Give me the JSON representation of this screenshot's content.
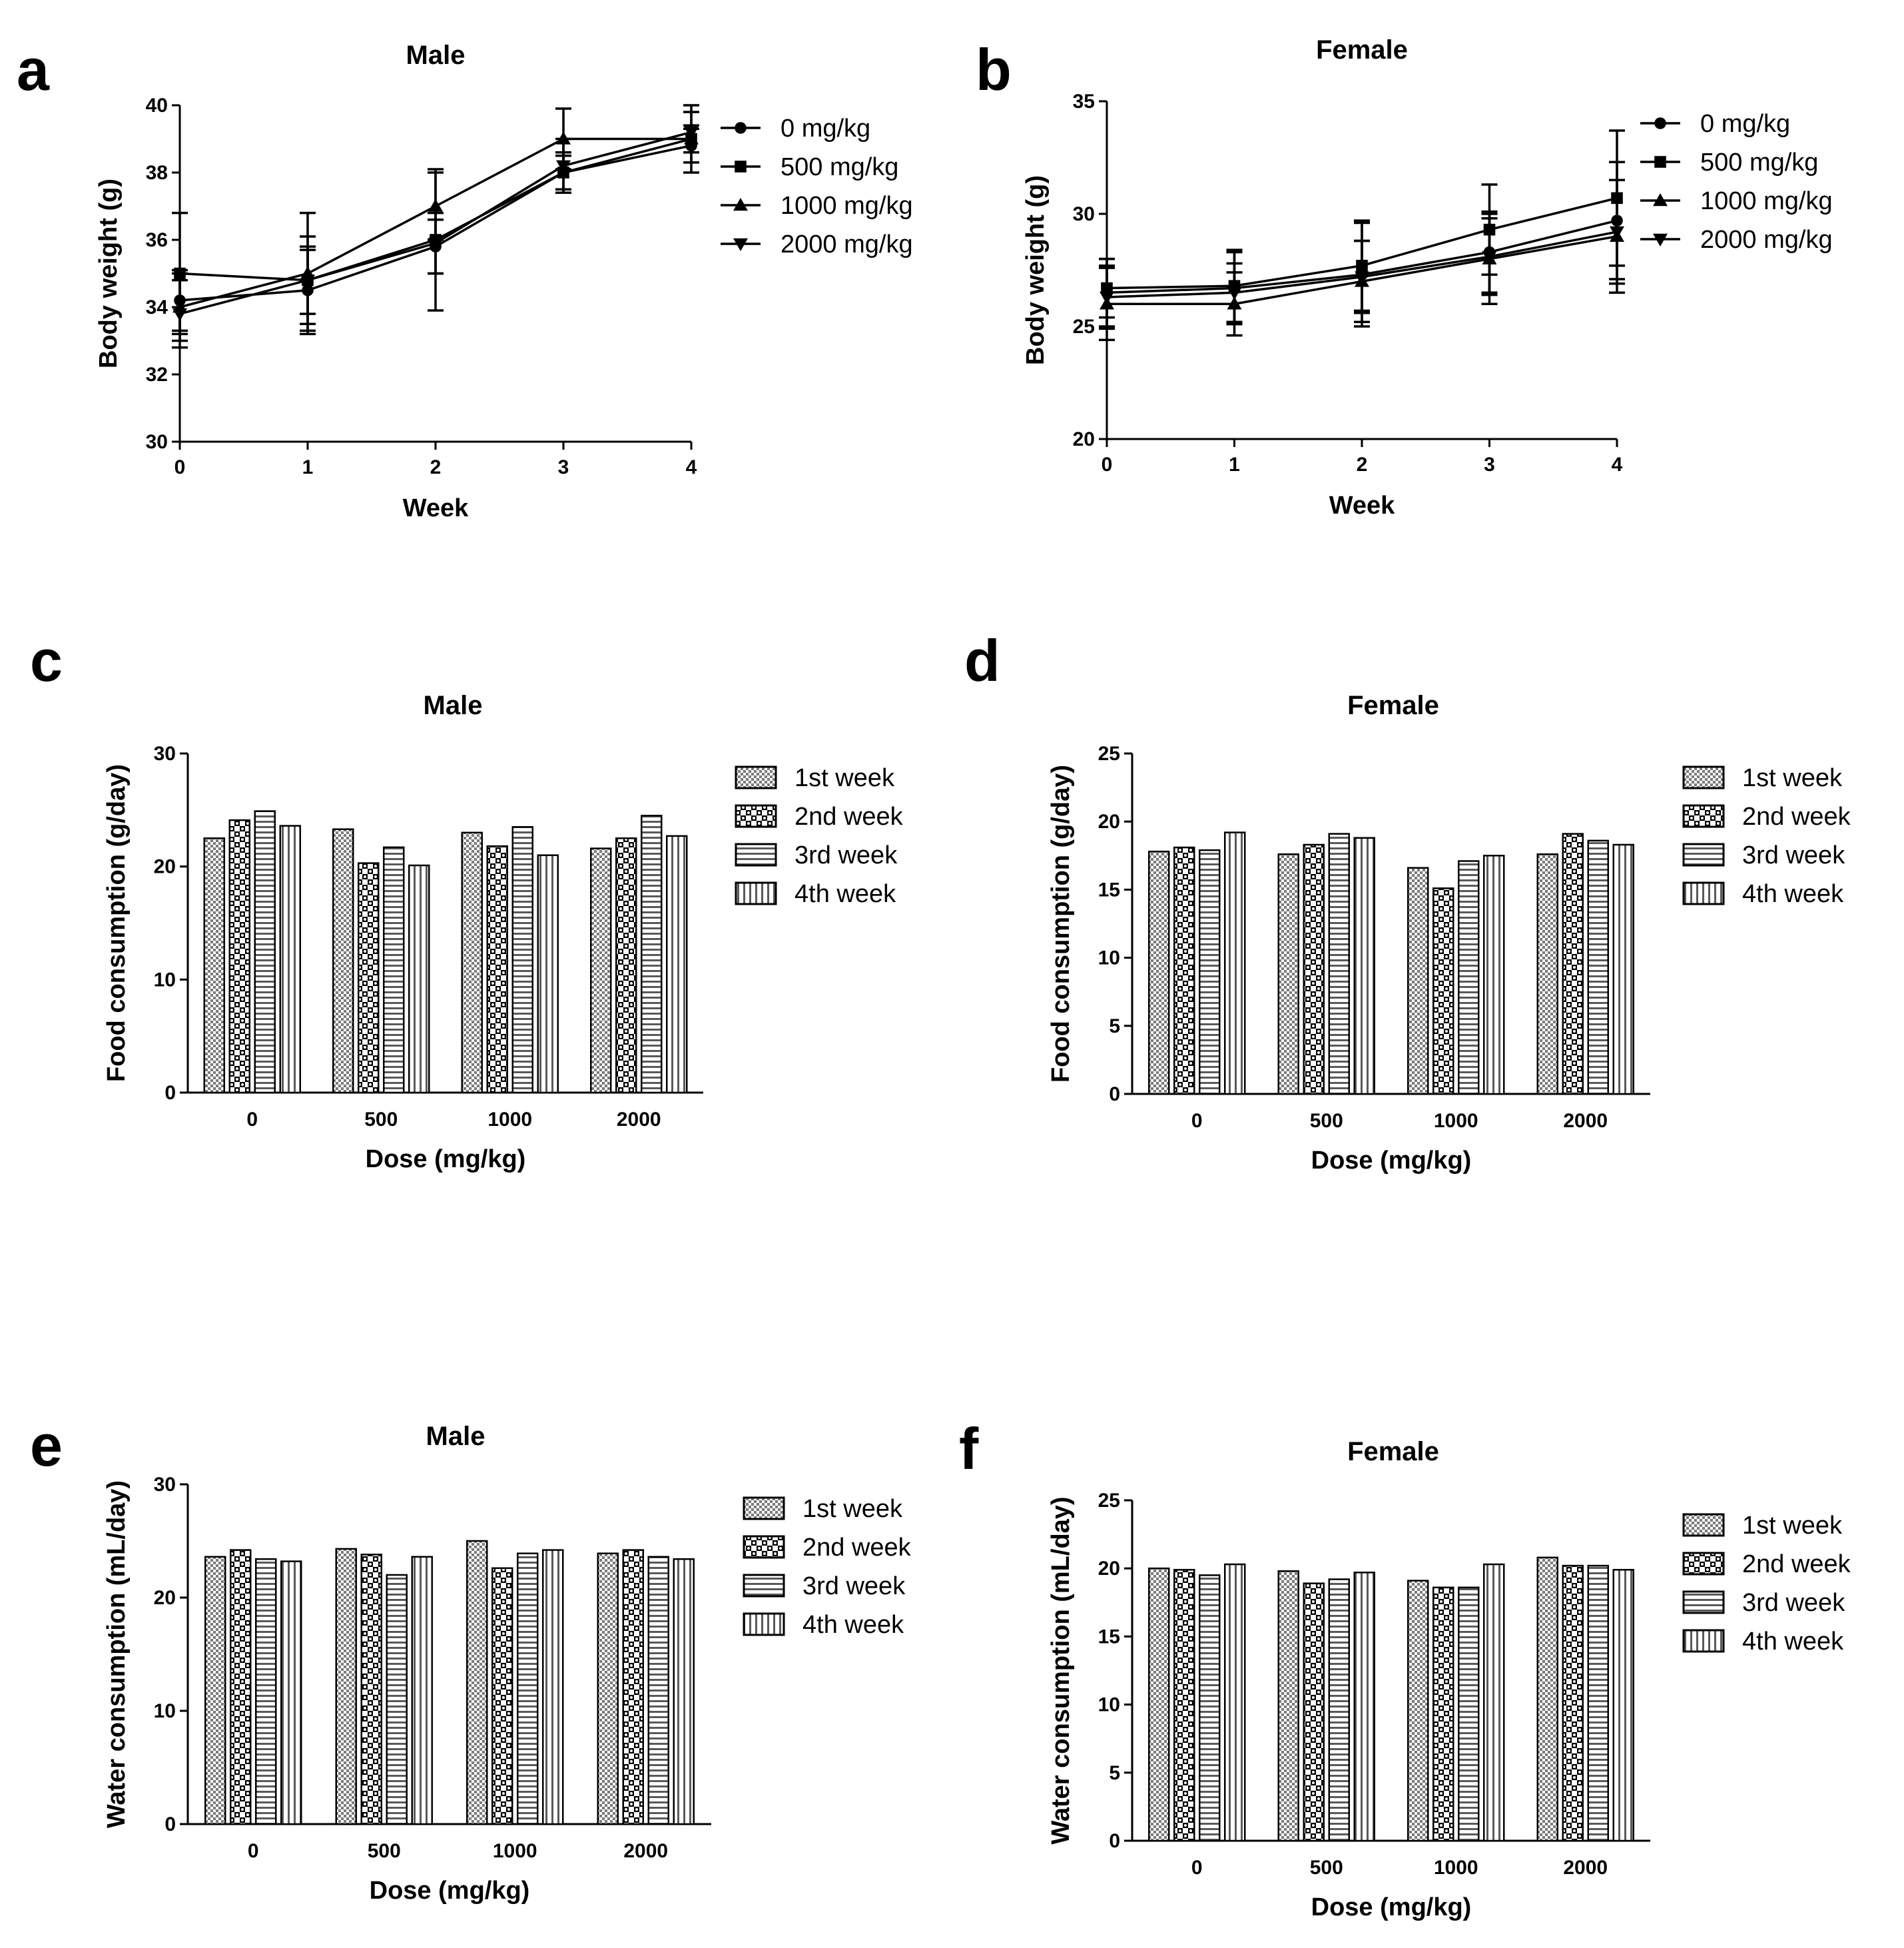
{
  "chart_data": [
    {
      "panel": "a",
      "type": "line",
      "title": "Male",
      "xlabel": "Week",
      "ylabel": "Body weight (g)",
      "x": [
        0,
        1,
        2,
        3,
        4
      ],
      "xticks": [
        "0",
        "1",
        "2",
        "3",
        "4"
      ],
      "ylim": [
        30,
        40
      ],
      "yticks": [
        "30",
        "32",
        "34",
        "36",
        "38",
        "40"
      ],
      "legend_position": "right",
      "series": [
        {
          "name": "0 mg/kg",
          "marker": "circle",
          "values": [
            34.2,
            34.5,
            35.8,
            38.0,
            38.8
          ],
          "errors": [
            0.9,
            1.2,
            0.8,
            0.6,
            0.5
          ]
        },
        {
          "name": "500 mg/kg",
          "marker": "square",
          "values": [
            35.0,
            34.8,
            36.0,
            38.0,
            39.0
          ],
          "errors": [
            1.8,
            1.3,
            2.1,
            0.5,
            0.4
          ]
        },
        {
          "name": "1000 mg/kg",
          "marker": "triangle-up",
          "values": [
            34.0,
            35.0,
            37.0,
            39.0,
            39.0
          ],
          "errors": [
            1.0,
            1.8,
            1.0,
            0.9,
            1.0
          ]
        },
        {
          "name": "2000 mg/kg",
          "marker": "triangle-down",
          "values": [
            33.8,
            34.8,
            35.9,
            38.2,
            39.2
          ],
          "errors": [
            1.0,
            1.0,
            0.9,
            0.8,
            0.6
          ]
        }
      ]
    },
    {
      "panel": "b",
      "type": "line",
      "title": "Female",
      "xlabel": "Week",
      "ylabel": "Body weight (g)",
      "x": [
        0,
        1,
        2,
        3,
        4
      ],
      "xticks": [
        "0",
        "1",
        "2",
        "3",
        "4"
      ],
      "ylim": [
        20,
        35
      ],
      "yticks": [
        "20",
        "25",
        "30",
        "35"
      ],
      "legend_position": "right",
      "series": [
        {
          "name": "0 mg/kg",
          "marker": "circle",
          "values": [
            26.5,
            26.7,
            27.3,
            28.3,
            29.7
          ],
          "errors": [
            1.5,
            1.6,
            2.3,
            1.8,
            2.6
          ]
        },
        {
          "name": "500 mg/kg",
          "marker": "square",
          "values": [
            26.7,
            26.8,
            27.7,
            29.3,
            30.7
          ],
          "errors": [
            1.3,
            1.6,
            2.0,
            2.0,
            3.0
          ]
        },
        {
          "name": "1000 mg/kg",
          "marker": "triangle-up",
          "values": [
            26.0,
            26.0,
            27.0,
            28.0,
            29.0
          ],
          "errors": [
            1.6,
            1.4,
            1.8,
            2.0,
            2.5
          ]
        },
        {
          "name": "2000 mg/kg",
          "marker": "triangle-down",
          "values": [
            26.3,
            26.5,
            27.2,
            28.1,
            29.2
          ],
          "errors": [
            1.4,
            1.3,
            1.6,
            1.7,
            2.3
          ]
        }
      ]
    },
    {
      "panel": "c",
      "type": "bar",
      "title": "Male",
      "xlabel": "Dose (mg/kg)",
      "ylabel": "Food consumption (g/day)",
      "categories": [
        "0",
        "500",
        "1000",
        "2000"
      ],
      "ylim": [
        0,
        30
      ],
      "yticks": [
        "0",
        "10",
        "20",
        "30"
      ],
      "legend_position": "right",
      "series": [
        {
          "name": "1st week",
          "values": [
            22.5,
            23.3,
            23.0,
            21.6
          ]
        },
        {
          "name": "2nd week",
          "values": [
            24.1,
            20.3,
            21.8,
            22.5
          ]
        },
        {
          "name": "3rd week",
          "values": [
            24.9,
            21.7,
            23.5,
            24.5
          ]
        },
        {
          "name": "4th week",
          "values": [
            23.6,
            20.1,
            21.0,
            22.7
          ]
        }
      ]
    },
    {
      "panel": "d",
      "type": "bar",
      "title": "Female",
      "xlabel": "Dose (mg/kg)",
      "ylabel": "Food consumption (g/day)",
      "categories": [
        "0",
        "500",
        "1000",
        "2000"
      ],
      "ylim": [
        0,
        25
      ],
      "yticks": [
        "0",
        "5",
        "10",
        "15",
        "20",
        "25"
      ],
      "legend_position": "right",
      "series": [
        {
          "name": "1st week",
          "values": [
            17.8,
            17.6,
            16.6,
            17.6
          ]
        },
        {
          "name": "2nd week",
          "values": [
            18.1,
            18.3,
            15.1,
            19.1
          ]
        },
        {
          "name": "3rd week",
          "values": [
            17.9,
            19.1,
            17.1,
            18.6
          ]
        },
        {
          "name": "4th week",
          "values": [
            19.2,
            18.8,
            17.5,
            18.3
          ]
        }
      ]
    },
    {
      "panel": "e",
      "type": "bar",
      "title": "Male",
      "xlabel": "Dose (mg/kg)",
      "ylabel": "Water consumption (mL/day)",
      "categories": [
        "0",
        "500",
        "1000",
        "2000"
      ],
      "ylim": [
        0,
        30
      ],
      "yticks": [
        "0",
        "10",
        "20",
        "30"
      ],
      "legend_position": "right",
      "series": [
        {
          "name": "1st week",
          "values": [
            23.6,
            24.3,
            25.0,
            23.9
          ]
        },
        {
          "name": "2nd week",
          "values": [
            24.2,
            23.8,
            22.6,
            24.2
          ]
        },
        {
          "name": "3rd week",
          "values": [
            23.4,
            22.0,
            23.9,
            23.6
          ]
        },
        {
          "name": "4th week",
          "values": [
            23.2,
            23.6,
            24.2,
            23.4
          ]
        }
      ]
    },
    {
      "panel": "f",
      "type": "bar",
      "title": "Female",
      "xlabel": "Dose (mg/kg)",
      "ylabel": "Water consumption (mL/day)",
      "categories": [
        "0",
        "500",
        "1000",
        "2000"
      ],
      "ylim": [
        0,
        25
      ],
      "yticks": [
        "0",
        "5",
        "10",
        "15",
        "20",
        "25"
      ],
      "legend_position": "right",
      "series": [
        {
          "name": "1st week",
          "values": [
            20.0,
            19.8,
            19.1,
            20.8
          ]
        },
        {
          "name": "2nd week",
          "values": [
            19.9,
            18.9,
            18.6,
            20.2
          ]
        },
        {
          "name": "3rd week",
          "values": [
            19.5,
            19.2,
            18.6,
            20.2
          ]
        },
        {
          "name": "4th week",
          "values": [
            20.3,
            19.7,
            20.3,
            19.9
          ]
        }
      ]
    }
  ]
}
